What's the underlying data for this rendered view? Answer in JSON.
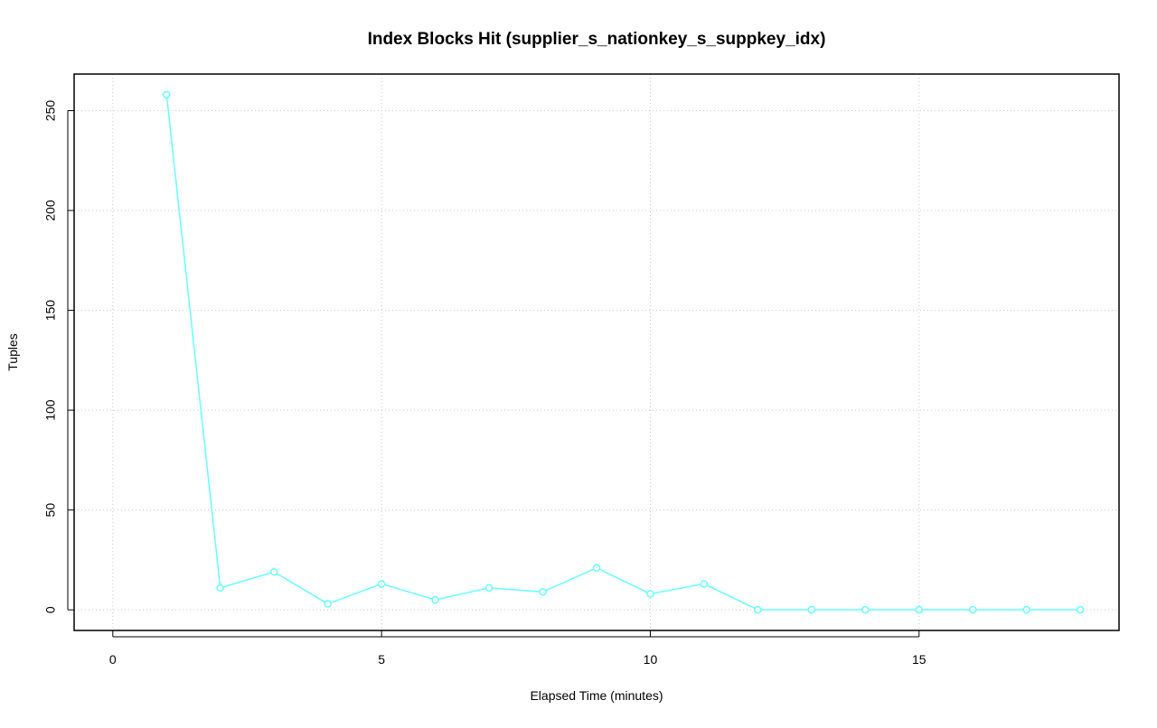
{
  "chart_data": {
    "type": "line",
    "title": "Index Blocks Hit (supplier_s_nationkey_s_suppkey_idx)",
    "x_label": "Elapsed Time (minutes)",
    "y_label": "Tuples",
    "x": [
      1,
      2,
      3,
      4,
      5,
      6,
      7,
      8,
      9,
      10,
      11,
      12,
      13,
      14,
      15,
      16,
      17,
      18
    ],
    "series": [
      {
        "color": "#66ffff",
        "values": [
          258,
          11,
          19,
          3,
          13,
          5,
          11,
          9,
          21,
          8,
          13,
          0,
          0,
          0,
          0,
          0,
          0,
          0
        ]
      }
    ],
    "xlim": [
      -0.72,
      18.72
    ],
    "xticks": [
      0,
      5,
      10,
      15
    ],
    "ylim": [
      -10.32,
      268.32
    ],
    "yticks": [
      0,
      50,
      100,
      150,
      200,
      250
    ],
    "grid": true
  }
}
